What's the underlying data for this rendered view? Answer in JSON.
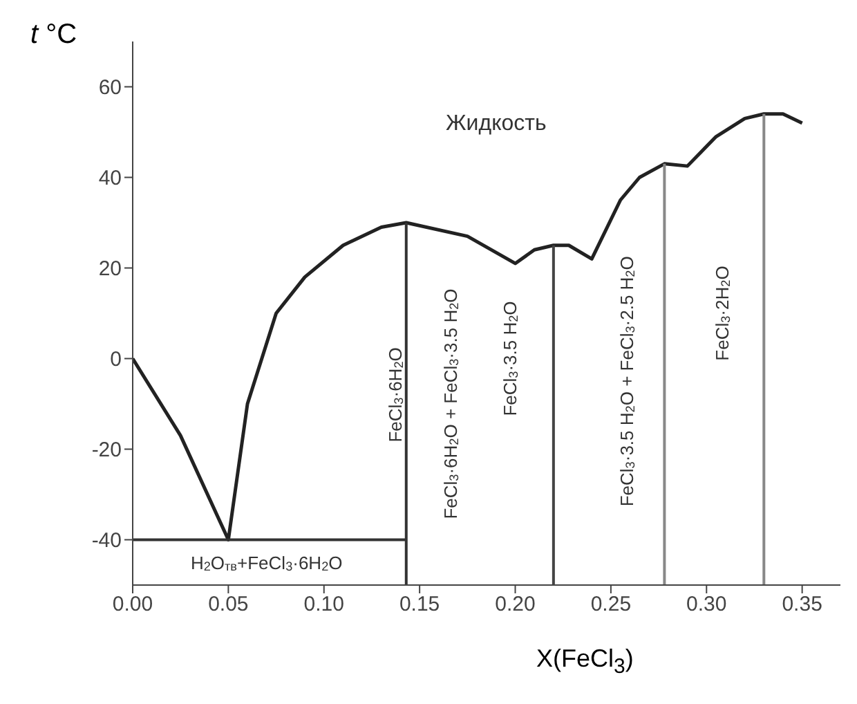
{
  "chart_data": {
    "type": "line",
    "ylabel": "t °C",
    "xlabel": "X(FeCl$_{3}$)",
    "xlim": [
      0,
      0.37
    ],
    "xticks": [
      {
        "value": 0,
        "label": "0.00"
      },
      {
        "value": 0.05,
        "label": "0.05"
      },
      {
        "value": 0.1,
        "label": "0.10"
      },
      {
        "value": 0.15,
        "label": "0.15"
      },
      {
        "value": 0.2,
        "label": "0.20"
      },
      {
        "value": 0.25,
        "label": "0.25"
      },
      {
        "value": 0.3,
        "label": "0.30"
      },
      {
        "value": 0.35,
        "label": "0.35"
      }
    ],
    "ylim": [
      -50,
      70
    ],
    "yticks": [
      -40,
      -20,
      0,
      20,
      40,
      60
    ],
    "marker": "none",
    "line_style": "solid",
    "series": [
      {
        "color": "#222222",
        "x": [
          0,
          0.025,
          0.05,
          0.06,
          0.075,
          0.09,
          0.11,
          0.13,
          0.143,
          0.175,
          0.2,
          0.21,
          0.22,
          0.228,
          0.24,
          0.255,
          0.265,
          0.278,
          0.29,
          0.305,
          0.32,
          0.33,
          0.34,
          0.35
        ],
        "values": [
          0,
          -17,
          -40,
          -10,
          10,
          18,
          25,
          29,
          30,
          27,
          21,
          24,
          25,
          25,
          22,
          35,
          40,
          43,
          42.5,
          49,
          53,
          54,
          54,
          52
        ]
      },
      {
        "color": "#333333",
        "x": [
          0,
          0.143
        ],
        "values": [
          -40,
          -40
        ]
      },
      {
        "color": "#333333",
        "x": [
          0.143,
          0.143
        ],
        "values": [
          -50,
          30
        ]
      },
      {
        "color": "#444444",
        "x": [
          0.22,
          0.22
        ],
        "values": [
          -50,
          25
        ]
      },
      {
        "color": "#888888",
        "x": [
          0.278,
          0.278
        ],
        "values": [
          -50,
          43
        ]
      },
      {
        "color": "#888888",
        "x": [
          0.33,
          0.33
        ],
        "values": [
          -50,
          54
        ]
      }
    ],
    "annotations": [
      "Жидкость",
      "H$_{2}$O$_{тв}$+FeCl$_{3}$·6H$_{2}$O",
      "FeCl$_{3}$·6H$_{2}$O",
      "FeCl$_{3}$·6H$_{2}$O + FeCl$_{3}$·3.5 H$_{2}$O",
      "FeCl$_{3}$·3.5 H$_{2}$O",
      "FeCl$_{3}$·3.5 H$_{2}$O + FeCl$_{3}$·2.5 H$_{2}$O",
      "FeCl$_{3}$·2H$_{2}$O"
    ]
  }
}
